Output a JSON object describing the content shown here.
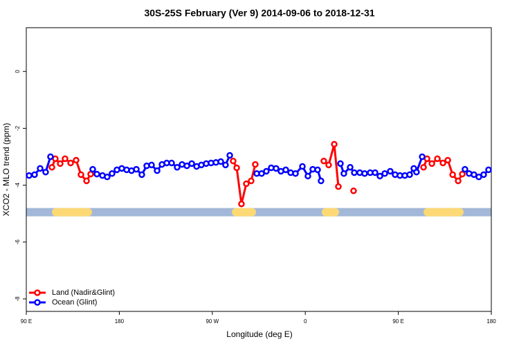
{
  "chart_data": {
    "type": "line",
    "title": "30S-25S February (Ver 9)   2014-09-06 to 2018-12-31",
    "x_label": "Longitude (deg E)",
    "y_label": "XCO2 - MLO trend (ppm)",
    "xlim": [
      90,
      540
    ],
    "xticks": [
      {
        "value": 90,
        "label": "90 E"
      },
      {
        "value": 180,
        "label": "180"
      },
      {
        "value": 270,
        "label": "90 W"
      },
      {
        "value": 360,
        "label": "0"
      },
      {
        "value": 450,
        "label": "90 E"
      },
      {
        "value": 540,
        "label": "180"
      }
    ],
    "ylim": [
      -8.44,
      1.54
    ],
    "yticks": [
      0,
      -2,
      -4,
      -6,
      -8
    ],
    "legend": "bottomleft",
    "mask": {
      "value": -4.95,
      "color": "#a3b8d8",
      "land_color": "#fcd975",
      "land": [
        [
          114.8,
          153.6
        ],
        [
          288.9,
          312.3
        ],
        [
          375.9,
          392.7
        ],
        [
          474.4,
          513.2
        ]
      ]
    },
    "series": [
      {
        "name": "Land (Nadir&Glint)",
        "color": "#ff0000",
        "x": [
          114.8,
          118.1,
          122.8,
          127.5,
          132.9,
          138.2,
          142.9,
          148.3,
          152.3,
          200,
          290.2,
          293.6,
          298.2,
          302.9,
          307.6,
          311.6,
          340,
          377.9,
          382.6,
          388.0,
          392.0,
          400,
          406.7,
          450,
          474.4,
          477.8,
          482.5,
          487.8,
          493.2,
          497.9,
          502.6,
          507.9,
          511.9
        ],
        "values": [
          -3.37,
          -3.07,
          -3.24,
          -3.07,
          -3.22,
          -3.12,
          -3.63,
          -3.85,
          -3.61,
          null,
          -3.15,
          -3.39,
          -4.66,
          -3.95,
          -3.85,
          -3.27,
          null,
          -3.15,
          -3.29,
          -2.56,
          -4.05,
          null,
          -4.2,
          null,
          -3.37,
          -3.07,
          -3.24,
          -3.07,
          -3.22,
          -3.12,
          -3.63,
          -3.85,
          -3.61
        ]
      },
      {
        "name": "Ocean (Glint)",
        "color": "#0000ff",
        "x": [
          92.7,
          98.0,
          103.4,
          108.7,
          113.4,
          120,
          154.3,
          158.3,
          163.7,
          168.3,
          173.0,
          177.7,
          182.4,
          187.1,
          191.8,
          196.5,
          201.8,
          206.5,
          211.2,
          216.6,
          221.3,
          225.9,
          230.6,
          236.0,
          240.7,
          245.4,
          250.1,
          254.8,
          259.4,
          264.1,
          268.8,
          273.5,
          278.2,
          282.8,
          286.9,
          300,
          313.0,
          317.7,
          322.3,
          327.0,
          331.7,
          336.4,
          341.1,
          345.8,
          350.5,
          357.2,
          362.5,
          367.2,
          371.9,
          375.2,
          380,
          394.0,
          397.3,
          403.4,
          407.4,
          412.7,
          417.4,
          422.8,
          427.5,
          432.2,
          436.9,
          442.2,
          446.9,
          451.6,
          456.3,
          461.0,
          465.0,
          467.6,
          473.1,
          490,
          514.5,
          518.5,
          523.2,
          527.9,
          532.6,
          537.3
        ],
        "values": [
          -3.66,
          -3.63,
          -3.41,
          -3.54,
          -3.0,
          null,
          -3.44,
          -3.61,
          -3.66,
          -3.71,
          -3.59,
          -3.46,
          -3.41,
          -3.46,
          -3.49,
          -3.44,
          -3.63,
          -3.32,
          -3.29,
          -3.49,
          -3.27,
          -3.22,
          -3.22,
          -3.37,
          -3.27,
          -3.32,
          -3.24,
          -3.34,
          -3.29,
          -3.24,
          -3.22,
          -3.2,
          -3.17,
          -3.29,
          -2.95,
          null,
          -3.59,
          -3.59,
          -3.51,
          -3.39,
          -3.41,
          -3.51,
          -3.46,
          -3.56,
          -3.59,
          -3.34,
          -3.68,
          -3.44,
          -3.46,
          -3.85,
          null,
          -3.24,
          -3.59,
          -3.37,
          -3.56,
          -3.56,
          -3.59,
          -3.56,
          -3.56,
          -3.68,
          -3.59,
          -3.51,
          -3.63,
          -3.66,
          -3.66,
          -3.63,
          -3.41,
          -3.54,
          -3.0,
          null,
          -3.44,
          -3.59,
          -3.63,
          -3.71,
          -3.63,
          -3.46
        ]
      }
    ]
  }
}
